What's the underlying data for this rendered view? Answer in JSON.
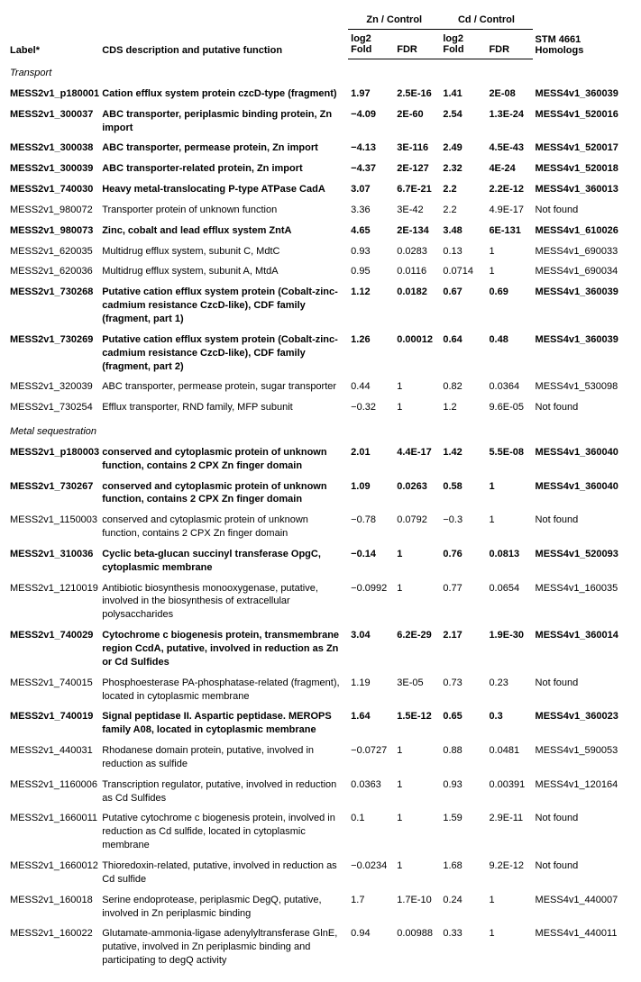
{
  "headers": {
    "label": "Label*",
    "desc": "CDS description and putative function",
    "zn": "Zn / Control",
    "cd": "Cd / Control",
    "log2": "log2 Fold",
    "fdr": "FDR",
    "hom": "STM 4661 Homologs"
  },
  "sections": [
    {
      "title": "Transport",
      "rows": [
        {
          "b": true,
          "label": "MESS2v1_p180001",
          "desc": "Cation efflux system protein czcD-type (fragment)",
          "zl": "1.97",
          "zf": "2.5E-16",
          "cl": "1.41",
          "cf": "2E-08",
          "hom": "MESS4v1_360039"
        },
        {
          "b": true,
          "label": "MESS2v1_300037",
          "desc": "ABC transporter, periplasmic binding protein, Zn import",
          "zl": "−4.09",
          "zf": "2E-60",
          "cl": "2.54",
          "cf": "1.3E-24",
          "hom": "MESS4v1_520016"
        },
        {
          "b": true,
          "label": "MESS2v1_300038",
          "desc": "ABC transporter, permease protein, Zn import",
          "zl": "−4.13",
          "zf": "3E-116",
          "cl": "2.49",
          "cf": "4.5E-43",
          "hom": "MESS4v1_520017"
        },
        {
          "b": true,
          "label": "MESS2v1_300039",
          "desc": "ABC transporter-related protein, Zn import",
          "zl": "−4.37",
          "zf": "2E-127",
          "cl": "2.32",
          "cf": "4E-24",
          "hom": "MESS4v1_520018"
        },
        {
          "b": true,
          "label": "MESS2v1_740030",
          "desc": "Heavy metal-translocating P-type ATPase CadA",
          "zl": "3.07",
          "zf": "6.7E-21",
          "cl": "2.2",
          "cf": "2.2E-12",
          "hom": "MESS4v1_360013"
        },
        {
          "b": false,
          "label": "MESS2v1_980072",
          "desc": "Transporter protein of unknown function",
          "zl": "3.36",
          "zf": "3E-42",
          "cl": "2.2",
          "cf": "4.9E-17",
          "hom": "Not found"
        },
        {
          "b": true,
          "label": "MESS2v1_980073",
          "desc": "Zinc, cobalt and lead efflux system ZntA",
          "zl": "4.65",
          "zf": "2E-134",
          "cl": "3.48",
          "cf": "6E-131",
          "hom": "MESS4v1_610026"
        },
        {
          "b": false,
          "label": "MESS2v1_620035",
          "desc": "Multidrug efflux system, subunit C, MdtC",
          "zl": "0.93",
          "zf": "0.0283",
          "cl": "0.13",
          "cf": "1",
          "hom": "MESS4v1_690033"
        },
        {
          "b": false,
          "label": "MESS2v1_620036",
          "desc": "Multidrug efflux system, subunit A, MtdA",
          "zl": "0.95",
          "zf": "0.0116",
          "cl": "0.0714",
          "cf": "1",
          "hom": "MESS4v1_690034"
        },
        {
          "b": true,
          "label": "MESS2v1_730268",
          "desc": "Putative cation efflux system protein (Cobalt-zinc-cadmium resistance CzcD-like), CDF family (fragment, part 1)",
          "zl": "1.12",
          "zf": "0.0182",
          "cl": "0.67",
          "cf": "0.69",
          "hom": "MESS4v1_360039"
        },
        {
          "b": true,
          "label": "MESS2v1_730269",
          "desc": "Putative cation efflux system protein (Cobalt-zinc-cadmium resistance CzcD-like), CDF family (fragment, part 2)",
          "zl": "1.26",
          "zf": "0.00012",
          "cl": "0.64",
          "cf": "0.48",
          "hom": "MESS4v1_360039"
        },
        {
          "b": false,
          "label": "MESS2v1_320039",
          "desc": "ABC transporter, permease protein, sugar transporter",
          "zl": "0.44",
          "zf": "1",
          "cl": "0.82",
          "cf": "0.0364",
          "hom": "MESS4v1_530098"
        },
        {
          "b": false,
          "label": "MESS2v1_730254",
          "desc": "Efflux transporter, RND family, MFP subunit",
          "zl": "−0.32",
          "zf": "1",
          "cl": "1.2",
          "cf": "9.6E-05",
          "hom": "Not found"
        }
      ]
    },
    {
      "title": "Metal sequestration",
      "rows": [
        {
          "b": true,
          "label": "MESS2v1_p180003",
          "desc": "conserved and cytoplasmic protein of unknown function, contains 2 CPX Zn finger domain",
          "zl": "2.01",
          "zf": "4.4E-17",
          "cl": "1.42",
          "cf": "5.5E-08",
          "hom": "MESS4v1_360040"
        },
        {
          "b": true,
          "label": "MESS2v1_730267",
          "desc": "conserved and cytoplasmic protein of unknown function, contains 2 CPX Zn finger domain",
          "zl": "1.09",
          "zf": "0.0263",
          "cl": "0.58",
          "cf": "1",
          "hom": "MESS4v1_360040"
        },
        {
          "b": false,
          "label": "MESS2v1_1150003",
          "desc": "conserved and cytoplasmic protein of unknown function, contains 2 CPX Zn finger domain",
          "zl": "−0.78",
          "zf": "0.0792",
          "cl": "−0.3",
          "cf": "1",
          "hom": "Not found"
        },
        {
          "b": true,
          "label": "MESS2v1_310036",
          "desc": "Cyclic beta-glucan succinyl transferase OpgC, cytoplasmic membrane",
          "zl": "−0.14",
          "zf": "1",
          "cl": "0.76",
          "cf": "0.0813",
          "hom": "MESS4v1_520093"
        },
        {
          "b": false,
          "label": "MESS2v1_1210019",
          "desc": "Antibiotic biosynthesis monooxygenase, putative, involved in the biosynthesis of extracellular polysaccharides",
          "zl": "−0.0992",
          "zf": "1",
          "cl": "0.77",
          "cf": "0.0654",
          "hom": "MESS4v1_160035"
        },
        {
          "b": true,
          "label": "MESS2v1_740029",
          "desc": "Cytochrome c biogenesis protein, transmembrane region CcdA, putative, involved in reduction as Zn or Cd Sulfides",
          "zl": "3.04",
          "zf": "6.2E-29",
          "cl": "2.17",
          "cf": "1.9E-30",
          "hom": "MESS4v1_360014"
        },
        {
          "b": false,
          "label": "MESS2v1_740015",
          "desc": "Phosphoesterase PA-phosphatase-related (fragment), located in cytoplasmic membrane",
          "zl": "1.19",
          "zf": "3E-05",
          "cl": "0.73",
          "cf": "0.23",
          "hom": "Not found"
        },
        {
          "b": true,
          "label": "MESS2v1_740019",
          "desc": "Signal peptidase II. Aspartic peptidase. MEROPS family A08, located in cytoplasmic membrane",
          "zl": "1.64",
          "zf": "1.5E-12",
          "cl": "0.65",
          "cf": "0.3",
          "hom": "MESS4v1_360023"
        },
        {
          "b": false,
          "label": "MESS2v1_440031",
          "desc": "Rhodanese domain protein, putative, involved in reduction as sulfide",
          "zl": "−0.0727",
          "zf": "1",
          "cl": "0.88",
          "cf": "0.0481",
          "hom": "MESS4v1_590053"
        },
        {
          "b": false,
          "label": "MESS2v1_1160006",
          "desc": "Transcription regulator, putative, involved in reduction as Cd Sulfides",
          "zl": "0.0363",
          "zf": "1",
          "cl": "0.93",
          "cf": "0.00391",
          "hom": "MESS4v1_120164"
        },
        {
          "b": false,
          "label": "MESS2v1_1660011",
          "desc": "Putative cytochrome c biogenesis protein, involved in reduction as Cd sulfide, located in cytoplasmic membrane",
          "zl": "0.1",
          "zf": "1",
          "cl": "1.59",
          "cf": "2.9E-11",
          "hom": "Not found"
        },
        {
          "b": false,
          "label": "MESS2v1_1660012",
          "desc": "Thioredoxin-related, putative, involved in reduction as Cd sulfide",
          "zl": "−0.0234",
          "zf": "1",
          "cl": "1.68",
          "cf": "9.2E-12",
          "hom": "Not found"
        },
        {
          "b": false,
          "label": "MESS2v1_160018",
          "desc": "Serine endoprotease, periplasmic DegQ, putative, involved in Zn periplasmic binding",
          "zl": "1.7",
          "zf": "1.7E-10",
          "cl": "0.24",
          "cf": "1",
          "hom": "MESS4v1_440007"
        },
        {
          "b": false,
          "label": "MESS2v1_160022",
          "desc": "Glutamate-ammonia-ligase adenylyltransferase GlnE, putative, involved in Zn periplasmic binding and participating to degQ activity",
          "zl": "0.94",
          "zf": "0.00988",
          "cl": "0.33",
          "cf": "1",
          "hom": "MESS4v1_440011"
        }
      ]
    }
  ]
}
